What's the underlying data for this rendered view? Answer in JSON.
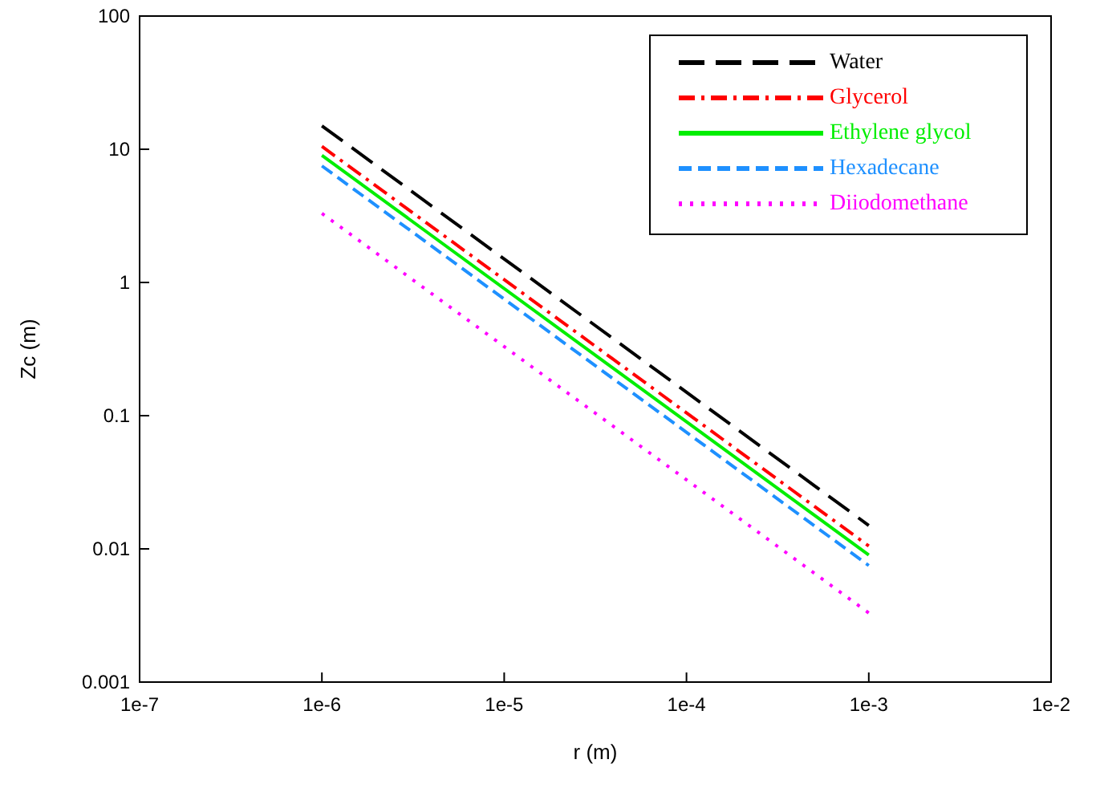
{
  "chart_data": {
    "type": "line",
    "xlabel": "r (m)",
    "ylabel": "Zc (m)",
    "log": "xy",
    "grid": false,
    "legend": "top right",
    "marker": "none",
    "xlim": [
      1e-07,
      0.01
    ],
    "ylim": [
      0.001,
      100
    ],
    "xticks": [
      {
        "value": 1e-07,
        "label": "1e-7"
      },
      {
        "value": 1e-06,
        "label": "1e-6"
      },
      {
        "value": 1e-05,
        "label": "1e-5"
      },
      {
        "value": 0.0001,
        "label": "1e-4"
      },
      {
        "value": 0.001,
        "label": "1e-3"
      },
      {
        "value": 0.01,
        "label": "1e-2"
      }
    ],
    "yticks": [
      0.001,
      0.01,
      0.1,
      1,
      10,
      100
    ],
    "x": [
      1e-06,
      0.001
    ],
    "series": [
      {
        "name": "Water",
        "color": "#000000",
        "line_style": "longdash",
        "values": [
          15,
          0.015
        ]
      },
      {
        "name": "Glycerol",
        "color": "#ff0000",
        "line_style": "dashdot",
        "values": [
          10.5,
          0.0105
        ]
      },
      {
        "name": "Ethylene glycol",
        "color": "#00ee00",
        "line_style": "solid",
        "values": [
          9,
          0.009
        ]
      },
      {
        "name": "Hexadecane",
        "color": "#1e90ff",
        "line_style": "dashed",
        "values": [
          7.5,
          0.0075
        ]
      },
      {
        "name": "Diiodomethane",
        "color": "#ff00ff",
        "line_style": "dotted",
        "values": [
          3.3,
          0.0033
        ]
      }
    ]
  }
}
